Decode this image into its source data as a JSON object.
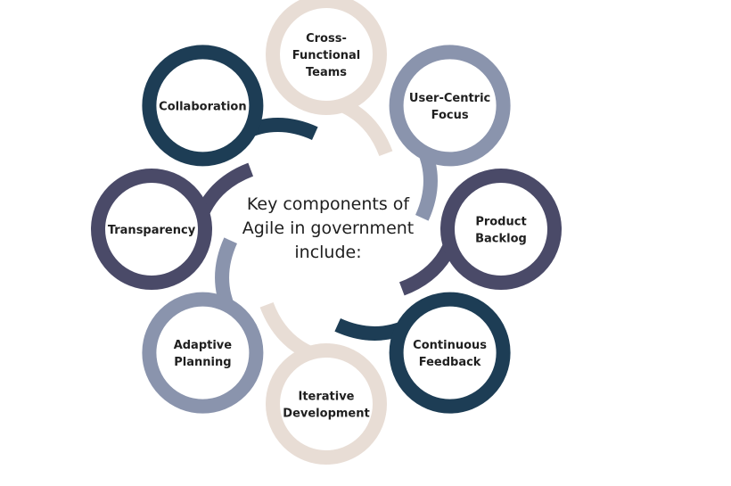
{
  "center": {
    "lines": [
      "Key components of",
      "Agile in government",
      "include:"
    ]
  },
  "colors": {
    "navy": "#1d3d55",
    "slate": "#8a94ad",
    "beige": "#e8ddd5",
    "purple": "#4a4a68"
  },
  "nodes": [
    {
      "id": "cross-functional-teams",
      "lines": [
        "Cross-",
        "Functional",
        "Teams"
      ],
      "color": "beige"
    },
    {
      "id": "user-centric-focus",
      "lines": [
        "User-Centric",
        "Focus"
      ],
      "color": "slate"
    },
    {
      "id": "product-backlog",
      "lines": [
        "Product",
        "Backlog"
      ],
      "color": "purple"
    },
    {
      "id": "continuous-feedback",
      "lines": [
        "Continuous",
        "Feedback"
      ],
      "color": "navy"
    },
    {
      "id": "iterative-development",
      "lines": [
        "Iterative",
        "Development"
      ],
      "color": "beige"
    },
    {
      "id": "adaptive-planning",
      "lines": [
        "Adaptive",
        "Planning"
      ],
      "color": "slate"
    },
    {
      "id": "transparency",
      "lines": [
        "Transparency"
      ],
      "color": "purple"
    },
    {
      "id": "collaboration",
      "lines": [
        "Collaboration"
      ],
      "color": "navy"
    }
  ]
}
